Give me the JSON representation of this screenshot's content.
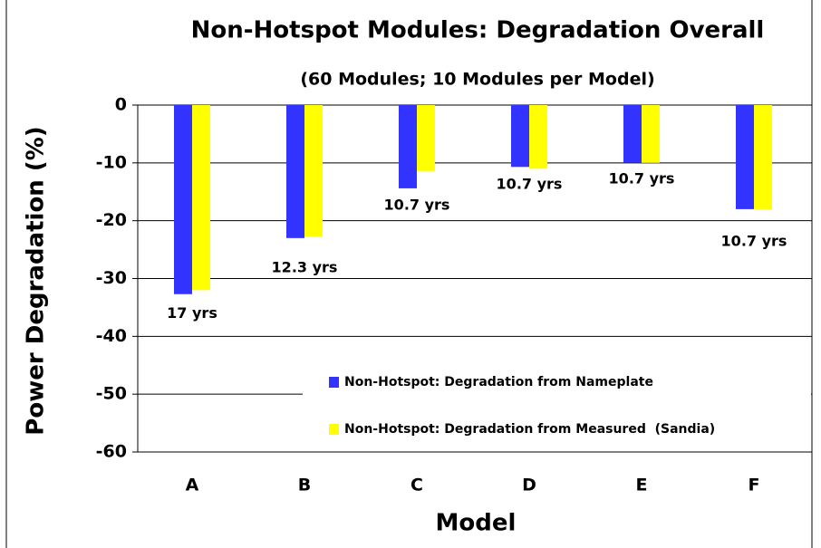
{
  "chart_data": {
    "type": "bar",
    "title": "Non-Hotspot Modules: Degradation Overall",
    "subtitle": "(60 Modules; 10 Modules per Model)",
    "x_label": "Model",
    "y_label": "Power Degradation (%)",
    "categories": [
      "A",
      "B",
      "C",
      "D",
      "E",
      "F"
    ],
    "series": [
      {
        "name": "Non-Hotspot: Degradation from Nameplate",
        "color": "#3333ff",
        "values": [
          -32.7,
          -23.0,
          -14.4,
          -10.7,
          -10.0,
          -18.0
        ]
      },
      {
        "name": "Non-Hotspot: Degradation from Measured  (Sandia)",
        "color": "#ffff00",
        "values": [
          -32.0,
          -22.7,
          -11.4,
          -11.0,
          -10.0,
          -18.0
        ]
      }
    ],
    "annotations": [
      "17 yrs",
      "12.3 yrs",
      "10.7 yrs",
      "10.7 yrs",
      "10.7 yrs",
      "10.7 yrs"
    ],
    "ylim": [
      -60,
      0
    ],
    "yticks": [
      0,
      -10,
      -20,
      -30,
      -40,
      -50,
      -60
    ],
    "grid": true
  }
}
